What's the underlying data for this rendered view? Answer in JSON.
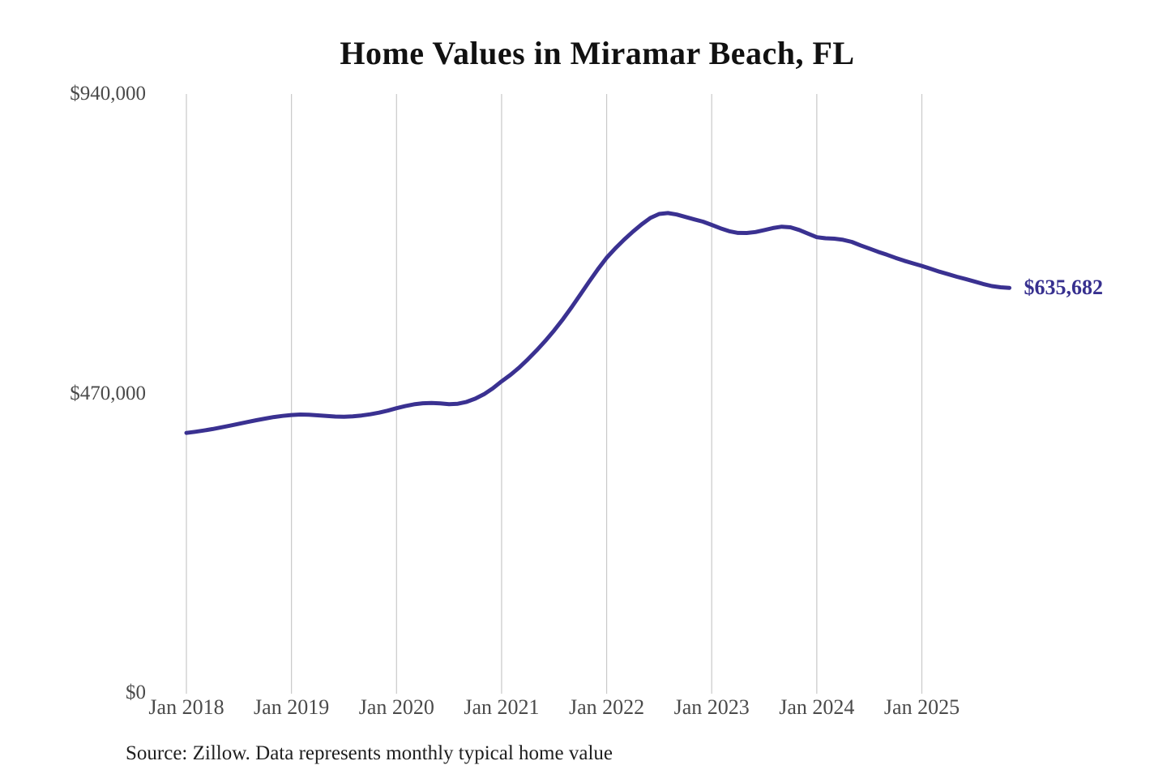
{
  "chart_data": {
    "type": "line",
    "title": "Home Values in Miramar Beach, FL",
    "source_note": "Source: Zillow. Data represents monthly typical home value",
    "annotation_label": "$635,682",
    "final_value": 635682,
    "x_start": "Jan 2018",
    "x_end": "Nov 2025",
    "x_tick_labels": [
      "Jan 2018",
      "Jan 2019",
      "Jan 2020",
      "Jan 2021",
      "Jan 2022",
      "Jan 2023",
      "Jan 2024",
      "Jan 2025"
    ],
    "y_ticks": [
      {
        "value": 0,
        "label": "$0"
      },
      {
        "value": 470000,
        "label": "$470,000"
      },
      {
        "value": 940000,
        "label": "$940,000"
      }
    ],
    "ylim": [
      0,
      940000
    ],
    "grid": "vertical-only",
    "legend": "none",
    "colors": {
      "line": "#3a3191",
      "annotation": "#37308f",
      "grid": "#c9c9c9",
      "axis_text": "#4a4a4a",
      "title_text": "#111111",
      "source_text": "#1f1f1f"
    },
    "series": [
      {
        "name": "Monthly typical home value",
        "monthly_values": [
          408000,
          409800,
          411900,
          414200,
          416800,
          419500,
          422400,
          425200,
          428000,
          430600,
          433000,
          434800,
          436200,
          436900,
          436600,
          435700,
          434600,
          433800,
          433500,
          434100,
          435400,
          437300,
          439800,
          443000,
          446800,
          450200,
          452900,
          454600,
          455100,
          454300,
          453200,
          453900,
          456800,
          461800,
          468800,
          478000,
          489000,
          499000,
          510500,
          523500,
          537500,
          552500,
          569000,
          586500,
          605500,
          625500,
          645500,
          665000,
          683000,
          698000,
          711500,
          724000,
          735500,
          745500,
          751800,
          753200,
          750800,
          747000,
          743200,
          739600,
          734600,
          729200,
          724600,
          722000,
          721800,
          723400,
          726400,
          729600,
          731800,
          730800,
          726600,
          720800,
          715200,
          713600,
          713000,
          711200,
          707800,
          702400,
          697400,
          692400,
          687800,
          682800,
          678200,
          674200,
          670200,
          665800,
          661200,
          657200,
          653200,
          649600,
          645800,
          641800,
          638600,
          636600,
          635682
        ]
      }
    ]
  }
}
